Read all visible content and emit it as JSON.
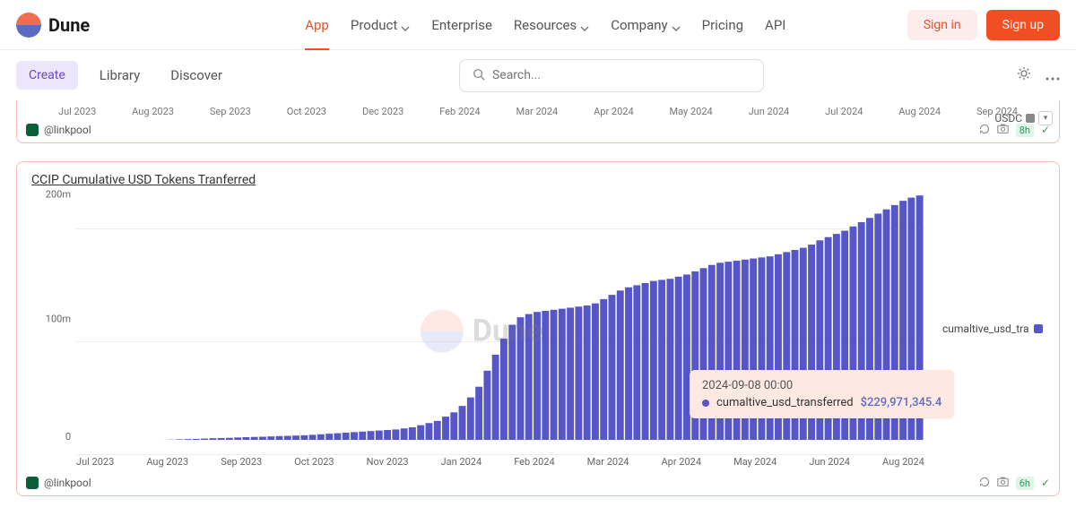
{
  "brand": "Dune",
  "nav": {
    "app": "App",
    "product": "Product",
    "enterprise": "Enterprise",
    "resources": "Resources",
    "company": "Company",
    "pricing": "Pricing",
    "api": "API"
  },
  "auth": {
    "signin": "Sign in",
    "signup": "Sign up"
  },
  "subnav": {
    "create": "Create",
    "library": "Library",
    "discover": "Discover"
  },
  "search": {
    "placeholder": "Search..."
  },
  "panel_cut": {
    "dates": [
      "Jul 2023",
      "Aug 2023",
      "Sep 2023",
      "Oct 2023",
      "Dec 2023",
      "Feb 2024",
      "Mar 2024",
      "Apr 2024",
      "May 2024",
      "Jun 2024",
      "Jul 2024",
      "Aug 2024",
      "Sep 2024"
    ],
    "legend": "USDC",
    "author": "@linkpool",
    "refresh": "8h"
  },
  "chart": {
    "title": "CCIP Cumulative USD Tokens Tranferred",
    "type": "bar",
    "color": "#5656c8",
    "background": "#ffffff",
    "grid_color": "#eeeeee",
    "ylim": [
      0,
      230000000
    ],
    "yticks": [
      {
        "pos": 0,
        "label": "0"
      },
      {
        "pos": 100000000,
        "label": "100m"
      },
      {
        "pos": 200000000,
        "label": "200m"
      }
    ],
    "xlabels": [
      "Jul 2023",
      "Aug 2023",
      "Sep 2023",
      "Oct 2023",
      "Nov 2023",
      "Jan 2024",
      "Feb 2024",
      "Mar 2024",
      "Apr 2024",
      "May 2024",
      "Jun 2024",
      "Aug 2024"
    ],
    "values": [
      0,
      0,
      0,
      0,
      0,
      0,
      0,
      0,
      0.1,
      0.2,
      0.3,
      0.5,
      0.8,
      1,
      1.2,
      1.5,
      1.8,
      2,
      2.2,
      2.5,
      2.8,
      3,
      3.2,
      3.5,
      3.8,
      4,
      4.3,
      4.6,
      5,
      5.5,
      6,
      6.5,
      7,
      7.5,
      8,
      8.5,
      9,
      9.5,
      10,
      11,
      12,
      14,
      16,
      18,
      22,
      26,
      32,
      40,
      50,
      65,
      80,
      95,
      108,
      115,
      118,
      120,
      121,
      122,
      123,
      124,
      125,
      126,
      128,
      132,
      136,
      140,
      143,
      145,
      147,
      149,
      150,
      151,
      153,
      155,
      158,
      161,
      164,
      166,
      167,
      168,
      169,
      170,
      171,
      172,
      174,
      176,
      178,
      180,
      183,
      187,
      190,
      193,
      196,
      200,
      204,
      208,
      212,
      216,
      220,
      224,
      227,
      229
    ],
    "legend": "cumaltive_usd_tra",
    "author": "@linkpool",
    "refresh": "6h"
  },
  "tooltip": {
    "date": "2024-09-08 00:00",
    "series": "cumaltive_usd_transferred",
    "value": "$229,971,345.4"
  },
  "watermark": "Dune"
}
